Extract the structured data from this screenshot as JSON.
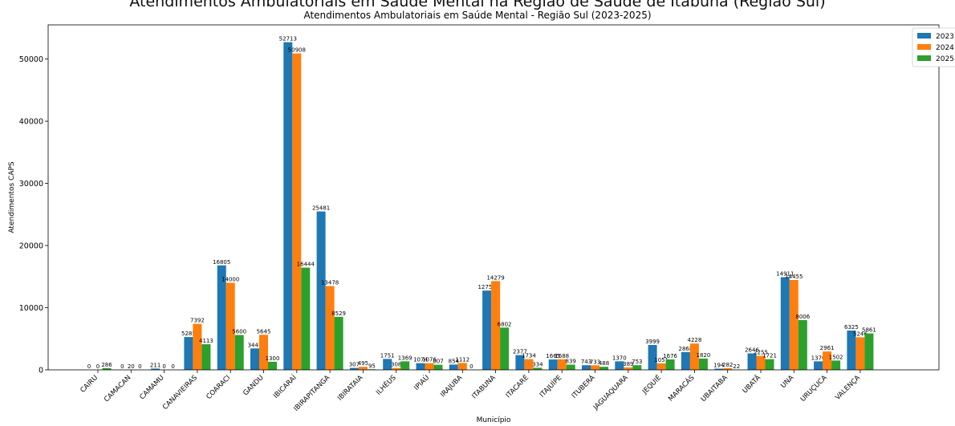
{
  "header": {
    "cutoff_text": "Atendimentos Ambulatoriais em Saúde Mental na Região de Saúde de Itabuna (Região Sul)"
  },
  "chart_data": {
    "type": "bar",
    "title": "Atendimentos Ambulatoriais em Saúde Mental - Região Sul (2023-2025)",
    "xlabel": "Município",
    "ylabel": "Atendimentos CAPS",
    "ylim": [
      0,
      55500
    ],
    "yticks": [
      0,
      10000,
      20000,
      30000,
      40000,
      50000
    ],
    "grid": false,
    "legend_position": "top-right",
    "categories": [
      "CAIRU",
      "CAMACAN",
      "CAMAMU",
      "CANAVIEIRAS",
      "COARACI",
      "GANDU",
      "IBICARAÍ",
      "IBIRAPITANGA",
      "IBIRATAIA",
      "ILHÉUS",
      "IPIAÚ",
      "IRAJUBA",
      "ITABUNA",
      "ITACARÉ",
      "ITAJUÍPE",
      "ITUBERÁ",
      "JAGUAQUARA",
      "JEQUIÉ",
      "MARACÁS",
      "UBAITABA",
      "UBATÃ",
      "UNA",
      "URUÇUCA",
      "VALENÇA"
    ],
    "series": [
      {
        "name": "2023",
        "color": "#1f77b4",
        "values": [
          0,
          0,
          211,
          5285,
          16805,
          3445,
          52713,
          25481,
          307,
          1751,
          1074,
          854,
          12751,
          2377,
          1665,
          743,
          1370,
          3999,
          2868,
          194,
          2646,
          14911,
          1370,
          6325
        ]
      },
      {
        "name": "2024",
        "color": "#ff7f0e",
        "values": [
          0,
          20,
          0,
          7392,
          14000,
          5645,
          50908,
          13478,
          495,
          308,
          1076,
          1112,
          14279,
          1734,
          1688,
          733,
          389,
          1051,
          4228,
          282,
          2255,
          14455,
          2961,
          5246
        ]
      },
      {
        "name": "2025",
        "color": "#2ca02c",
        "values": [
          286,
          0,
          0,
          4113,
          5600,
          1300,
          16444,
          8529,
          95,
          1369,
          807,
          0,
          6802,
          334,
          839,
          488,
          753,
          1676,
          1820,
          22,
          1721,
          8006,
          1502,
          5861
        ]
      }
    ]
  }
}
